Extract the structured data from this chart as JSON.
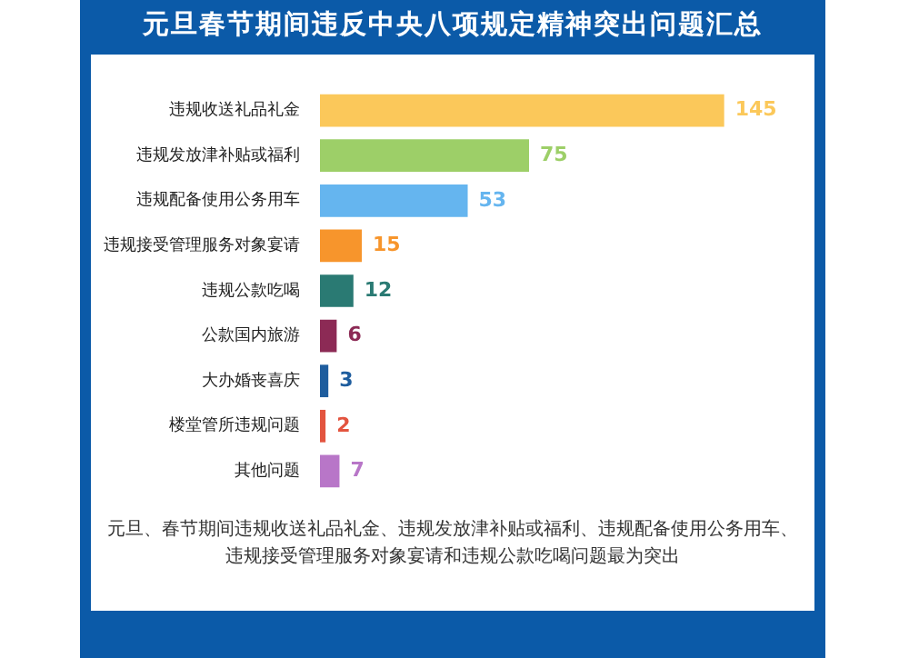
{
  "chart_data": {
    "type": "bar",
    "orientation": "horizontal",
    "title": "元旦春节期间违反中央八项规定精神突出问题汇总",
    "categories": [
      "违规收送礼品礼金",
      "违规发放津补贴或福利",
      "违规配备使用公务用车",
      "违规接受管理服务对象宴请",
      "违规公款吃喝",
      "公款国内旅游",
      "大办婚丧喜庆",
      "楼堂管所违规问题",
      "其他问题"
    ],
    "values": [
      145,
      75,
      53,
      15,
      12,
      6,
      3,
      2,
      7
    ],
    "colors": [
      "#fbc85a",
      "#9dcf68",
      "#65b5ef",
      "#f7952c",
      "#2a7a73",
      "#8c2a55",
      "#1e5d9e",
      "#e3543f",
      "#b876c8"
    ],
    "data_labels": true,
    "legend": false,
    "annotations": [
      "元旦、春节期间违规收送礼品礼金、违规发放津补贴或福利、违规配备使用公务用车、违规接受管理服务对象宴请和违规公款吃喝问题最为突出"
    ]
  }
}
